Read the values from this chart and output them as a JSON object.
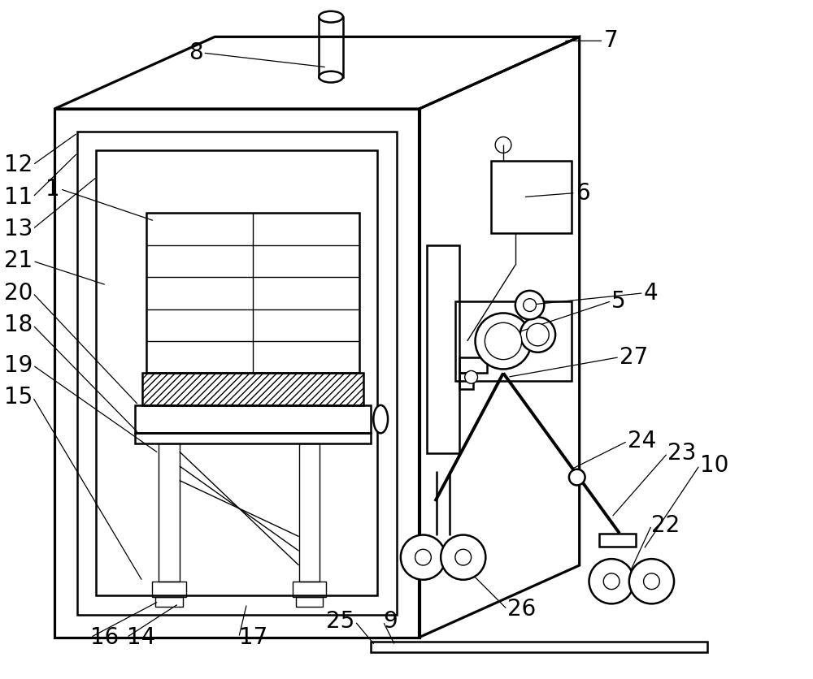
{
  "bg_color": "#ffffff",
  "line_color": "#000000",
  "lw": 1.8,
  "tlw": 1.0,
  "label_fontsize": 20
}
